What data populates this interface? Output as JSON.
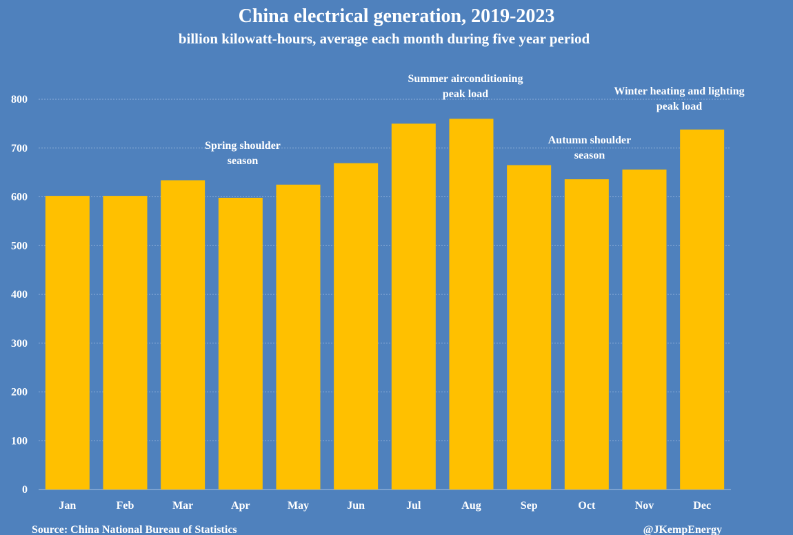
{
  "chart_data": {
    "type": "bar",
    "title": "China electrical generation, 2019-2023",
    "subtitle": "billion kilowatt-hours, average each month during five year period",
    "categories": [
      "Jan",
      "Feb",
      "Mar",
      "Apr",
      "May",
      "Jun",
      "Jul",
      "Aug",
      "Sep",
      "Oct",
      "Nov",
      "Dec"
    ],
    "values": [
      602,
      602,
      634,
      598,
      625,
      669,
      750,
      760,
      665,
      636,
      656,
      738
    ],
    "ylim": [
      0,
      800
    ],
    "yticks": [
      0,
      100,
      200,
      300,
      400,
      500,
      600,
      700,
      800
    ],
    "grid": true,
    "bar_color": "#ffc000",
    "annotations": [
      {
        "lines": [
          "Spring shoulder",
          "season"
        ]
      },
      {
        "lines": [
          "Summer airconditioning",
          "peak load"
        ]
      },
      {
        "lines": [
          "Autumn shoulder",
          "season"
        ]
      },
      {
        "lines": [
          "Winter heating and lighting",
          "peak load"
        ]
      }
    ]
  },
  "footer": {
    "source": "Source: China National Bureau of Statistics",
    "credit": "@JKempEnergy"
  },
  "colors": {
    "background": "#4f81bd",
    "bar": "#ffc000",
    "text": "#ffffff"
  }
}
